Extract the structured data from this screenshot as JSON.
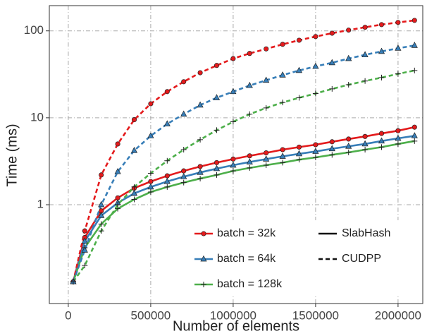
{
  "chart_data": {
    "type": "line",
    "x_label": "Number of elements",
    "y_label": "Time (ms)",
    "xlim": [
      -115000,
      2150000
    ],
    "ylim": [
      0.073,
      195
    ],
    "log_y": true,
    "grid": true,
    "xticks": [
      0,
      500000,
      1000000,
      1500000,
      2000000
    ],
    "yticks": [
      1,
      10,
      100
    ],
    "x": [
      30000,
      100000,
      200000,
      300000,
      400000,
      500000,
      600000,
      700000,
      800000,
      900000,
      1000000,
      1100000,
      1200000,
      1300000,
      1400000,
      1500000,
      1600000,
      1700000,
      1800000,
      1900000,
      2000000,
      2100000
    ],
    "legend_colors": [
      {
        "label": "batch = 32k",
        "color": "#e41a1c",
        "marker": "circle"
      },
      {
        "label": "batch = 64k",
        "color": "#377eb8",
        "marker": "triangle"
      },
      {
        "label": "batch = 128k",
        "color": "#4daf4a",
        "marker": "plus"
      }
    ],
    "legend_styles": [
      {
        "label": "SlabHash",
        "style": "solid"
      },
      {
        "label": "CUDPP",
        "style": "dashed"
      }
    ],
    "series": [
      {
        "color": "#e41a1c",
        "marker": "circle",
        "style": "solid",
        "values": [
          0.13,
          0.42,
          0.85,
          1.2,
          1.55,
          1.85,
          2.15,
          2.45,
          2.75,
          3.05,
          3.35,
          3.65,
          3.95,
          4.3,
          4.6,
          4.9,
          5.3,
          5.7,
          6.1,
          6.6,
          7.1,
          7.8
        ]
      },
      {
        "color": "#377eb8",
        "marker": "triangle",
        "style": "solid",
        "values": [
          0.13,
          0.38,
          0.75,
          1.05,
          1.35,
          1.6,
          1.85,
          2.1,
          2.35,
          2.6,
          2.85,
          3.1,
          3.35,
          3.6,
          3.85,
          4.1,
          4.4,
          4.7,
          5.0,
          5.4,
          5.8,
          6.2
        ]
      },
      {
        "color": "#4daf4a",
        "marker": "plus",
        "style": "solid",
        "values": [
          0.13,
          0.32,
          0.6,
          0.9,
          1.15,
          1.4,
          1.6,
          1.8,
          2.0,
          2.2,
          2.45,
          2.65,
          2.85,
          3.05,
          3.3,
          3.5,
          3.75,
          4.0,
          4.3,
          4.6,
          5.0,
          5.4
        ]
      },
      {
        "color": "#e41a1c",
        "marker": "circle",
        "style": "dashed",
        "values": [
          0.13,
          0.5,
          2.2,
          5,
          9.5,
          14.5,
          20,
          26,
          33,
          40,
          48,
          55,
          62,
          70,
          78,
          86,
          94,
          102,
          110,
          118,
          125,
          132
        ]
      },
      {
        "color": "#377eb8",
        "marker": "triangle",
        "style": "dashed",
        "values": [
          0.13,
          0.3,
          1.0,
          2.4,
          4.2,
          6.2,
          8.5,
          11,
          14,
          17,
          20,
          23.5,
          27,
          31,
          35,
          39,
          43,
          48,
          53,
          58,
          63,
          68
        ]
      },
      {
        "color": "#4daf4a",
        "marker": "plus",
        "style": "dashed",
        "values": [
          0.13,
          0.2,
          0.5,
          1.0,
          1.6,
          2.3,
          3.2,
          4.3,
          5.6,
          7.2,
          9.0,
          11,
          13,
          15,
          17,
          19,
          21.5,
          24,
          26.5,
          29,
          32,
          35
        ]
      }
    ]
  }
}
